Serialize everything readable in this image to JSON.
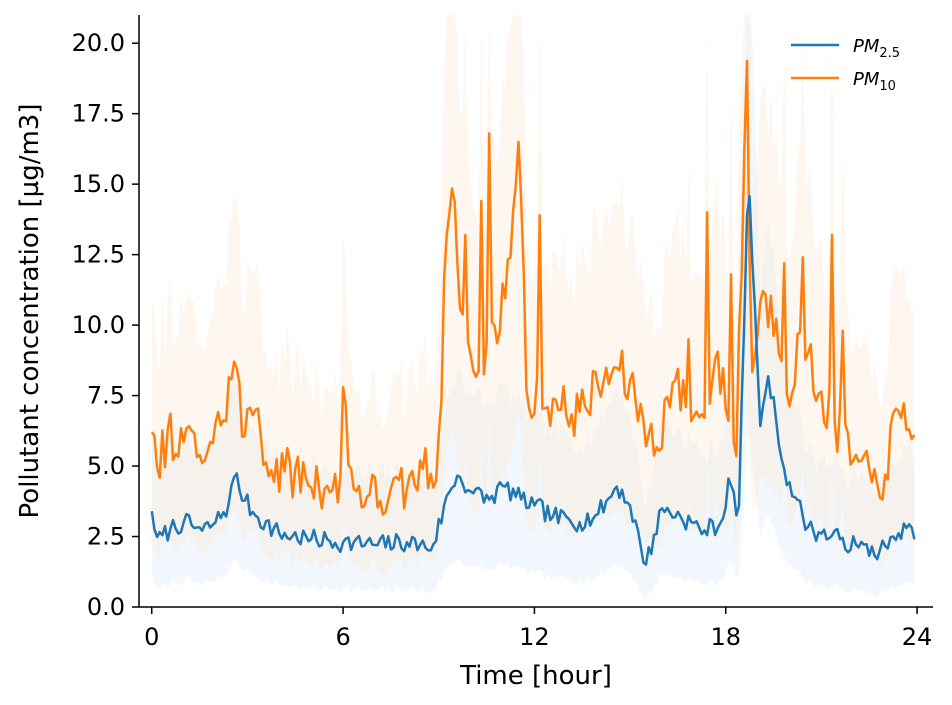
{
  "chart_data": {
    "type": "line",
    "xlabel": "Time [hour]",
    "ylabel": "Pollutant concentration [µg/m3]",
    "xlim": [
      -0.4,
      24.5
    ],
    "ylim": [
      0,
      21
    ],
    "xticks": [
      0,
      6,
      12,
      18,
      24
    ],
    "xtick_labels": [
      "0",
      "6",
      "12",
      "18",
      "24"
    ],
    "yticks": [
      0,
      2.5,
      5,
      7.5,
      10,
      12.5,
      15,
      17.5,
      20
    ],
    "ytick_labels": [
      "0.0",
      "2.5",
      "5.0",
      "7.5",
      "10.0",
      "12.5",
      "15.0",
      "17.5",
      "20.0"
    ],
    "grid": false,
    "legend_position": "top-right",
    "series": [
      {
        "name": "PM",
        "name_sub": "2.5",
        "color": "#1f77b4",
        "band_color": "#d6e9f5",
        "keypoints": [
          [
            0,
            3.4
          ],
          [
            0.2,
            2.3
          ],
          [
            0.6,
            2.8
          ],
          [
            1.0,
            3.0
          ],
          [
            1.6,
            2.7
          ],
          [
            2.0,
            3.0
          ],
          [
            2.4,
            3.6
          ],
          [
            2.6,
            4.7
          ],
          [
            2.9,
            3.8
          ],
          [
            3.3,
            3.2
          ],
          [
            4.0,
            2.6
          ],
          [
            5.0,
            2.4
          ],
          [
            6.0,
            2.3
          ],
          [
            7.0,
            2.2
          ],
          [
            8.0,
            2.3
          ],
          [
            8.8,
            2.1
          ],
          [
            9.3,
            4.0
          ],
          [
            9.6,
            4.7
          ],
          [
            10.0,
            4.1
          ],
          [
            10.6,
            3.8
          ],
          [
            11.0,
            4.3
          ],
          [
            11.6,
            3.8
          ],
          [
            12.0,
            3.6
          ],
          [
            12.6,
            3.2
          ],
          [
            13.4,
            3.0
          ],
          [
            14.0,
            3.3
          ],
          [
            14.6,
            4.3
          ],
          [
            15.0,
            3.6
          ],
          [
            15.5,
            1.5
          ],
          [
            16.0,
            3.5
          ],
          [
            16.6,
            3.2
          ],
          [
            17.3,
            2.7
          ],
          [
            17.9,
            3.0
          ],
          [
            18.1,
            4.7
          ],
          [
            18.4,
            2.9
          ],
          [
            18.7,
            15.3
          ],
          [
            18.9,
            11.0
          ],
          [
            19.1,
            6.0
          ],
          [
            19.3,
            8.4
          ],
          [
            19.6,
            6.5
          ],
          [
            19.8,
            5.0
          ],
          [
            20.2,
            3.8
          ],
          [
            20.6,
            2.8
          ],
          [
            21.0,
            2.6
          ],
          [
            21.6,
            2.4
          ],
          [
            22.2,
            2.1
          ],
          [
            22.8,
            2.0
          ],
          [
            23.3,
            2.3
          ],
          [
            23.6,
            3.0
          ],
          [
            23.9,
            2.4
          ]
        ],
        "noise": 0.35
      },
      {
        "name": "PM",
        "name_sub": "10",
        "color": "#ff7f0e",
        "band_color": "#fde7d3",
        "keypoints": [
          [
            0,
            6.2
          ],
          [
            0.2,
            4.7
          ],
          [
            0.5,
            6.3
          ],
          [
            0.8,
            5.2
          ],
          [
            1.1,
            6.4
          ],
          [
            1.4,
            5.3
          ],
          [
            1.8,
            5.8
          ],
          [
            2.2,
            6.5
          ],
          [
            2.6,
            8.8
          ],
          [
            2.9,
            6.0
          ],
          [
            3.3,
            7.3
          ],
          [
            3.6,
            5.0
          ],
          [
            4.2,
            4.8
          ],
          [
            4.8,
            4.6
          ],
          [
            5.5,
            4.3
          ],
          [
            5.9,
            4.0
          ],
          [
            6.0,
            7.8
          ],
          [
            6.3,
            4.2
          ],
          [
            6.8,
            4.0
          ],
          [
            7.4,
            3.8
          ],
          [
            8.0,
            4.2
          ],
          [
            8.5,
            4.9
          ],
          [
            9.0,
            4.6
          ],
          [
            9.2,
            13.0
          ],
          [
            9.4,
            15.1
          ],
          [
            9.6,
            12.0
          ],
          [
            9.9,
            9.5
          ],
          [
            10.2,
            8.0
          ],
          [
            10.6,
            9.5
          ],
          [
            11.1,
            11.0
          ],
          [
            11.5,
            16.5
          ],
          [
            11.8,
            7.0
          ],
          [
            12.2,
            7.5
          ],
          [
            12.8,
            7.0
          ],
          [
            13.4,
            6.9
          ],
          [
            14.0,
            7.8
          ],
          [
            14.6,
            8.5
          ],
          [
            15.2,
            7.3
          ],
          [
            15.8,
            5.5
          ],
          [
            16.3,
            8.0
          ],
          [
            16.8,
            7.2
          ],
          [
            17.3,
            6.5
          ],
          [
            17.7,
            9.0
          ],
          [
            18.1,
            6.5
          ],
          [
            18.4,
            5.2
          ],
          [
            18.65,
            20.8
          ],
          [
            18.8,
            8.0
          ],
          [
            19.1,
            11.0
          ],
          [
            19.6,
            10.2
          ],
          [
            19.9,
            7.5
          ],
          [
            20.4,
            9.6
          ],
          [
            20.9,
            7.6
          ],
          [
            21.4,
            6.6
          ],
          [
            22.0,
            5.2
          ],
          [
            22.6,
            4.4
          ],
          [
            23.0,
            4.7
          ],
          [
            23.4,
            7.0
          ],
          [
            23.7,
            6.2
          ],
          [
            23.9,
            6.1
          ]
        ],
        "spikes": [
          [
            9.0,
            6.1
          ],
          [
            9.8,
            13.2
          ],
          [
            10.3,
            14.4
          ],
          [
            10.6,
            16.8
          ],
          [
            12.2,
            13.9
          ],
          [
            16.8,
            9.5
          ],
          [
            17.4,
            14.0
          ],
          [
            18.2,
            11.8
          ],
          [
            18.4,
            9.8
          ],
          [
            19.8,
            12.2
          ],
          [
            20.4,
            12.4
          ],
          [
            21.3,
            13.2
          ],
          [
            21.7,
            9.8
          ]
        ],
        "noise": 0.9
      }
    ],
    "samples": 288,
    "seed": 7
  }
}
